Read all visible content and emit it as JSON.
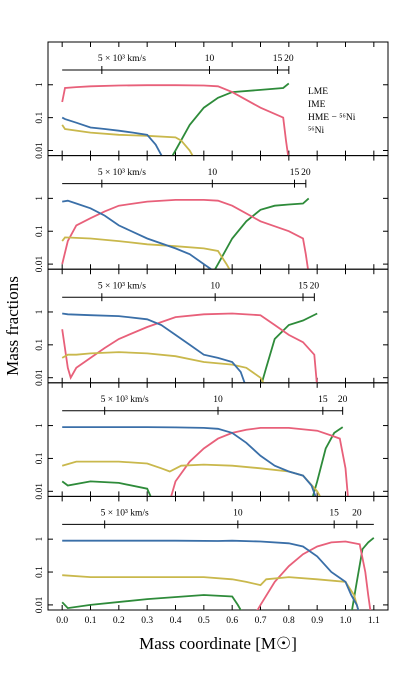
{
  "chart_data": [
    {
      "type": "line",
      "log_y": true,
      "ylim": [
        0.007,
        20
      ],
      "yticks": [
        0.01,
        0.1,
        1
      ],
      "legend": "right",
      "velocity_xlim": [
        0,
        0.8
      ],
      "velocity_ticks": [
        {
          "value": 0.14,
          "label": "5 × 10³ km/s"
        },
        {
          "value": 0.52,
          "label": "10"
        },
        {
          "value": 0.76,
          "label": "15"
        },
        {
          "value": 0.8,
          "label": "20"
        }
      ],
      "series": [
        {
          "name": "LME",
          "color": "#2e8b3a",
          "x": [
            0.38,
            0.4,
            0.45,
            0.5,
            0.55,
            0.6,
            0.7,
            0.78,
            0.8
          ],
          "values": [
            0.005,
            0.01,
            0.06,
            0.2,
            0.4,
            0.6,
            0.7,
            0.8,
            1.1
          ]
        },
        {
          "name": "IME",
          "color": "#e8607a",
          "x": [
            0,
            0.01,
            0.05,
            0.1,
            0.2,
            0.3,
            0.4,
            0.5,
            0.55,
            0.6,
            0.7,
            0.78,
            0.79,
            0.8
          ],
          "values": [
            0.3,
            0.8,
            0.85,
            0.9,
            0.95,
            0.97,
            0.97,
            0.95,
            0.9,
            0.6,
            0.2,
            0.1,
            0.02,
            0.005
          ]
        },
        {
          "name": "HME − ⁵⁶Ni",
          "color": "#c9b84c",
          "x": [
            0,
            0.01,
            0.1,
            0.2,
            0.3,
            0.4,
            0.42,
            0.45,
            0.47
          ],
          "values": [
            0.06,
            0.045,
            0.035,
            0.03,
            0.028,
            0.025,
            0.02,
            0.01,
            0.005
          ]
        },
        {
          "name": "⁵⁶Ni",
          "color": "#3a6fa8",
          "x": [
            0,
            0.01,
            0.05,
            0.1,
            0.15,
            0.2,
            0.25,
            0.3,
            0.33,
            0.36
          ],
          "values": [
            0.1,
            0.09,
            0.07,
            0.05,
            0.045,
            0.04,
            0.035,
            0.03,
            0.015,
            0.005
          ]
        }
      ]
    },
    {
      "type": "line",
      "log_y": true,
      "ylim": [
        0.007,
        20
      ],
      "yticks": [
        0.01,
        0.1,
        1
      ],
      "velocity_xlim": [
        0,
        0.86
      ],
      "velocity_ticks": [
        {
          "value": 0.14,
          "label": "5 × 10³ km/s"
        },
        {
          "value": 0.53,
          "label": "10"
        },
        {
          "value": 0.82,
          "label": "15"
        },
        {
          "value": 0.86,
          "label": "20"
        }
      ],
      "series": [
        {
          "color": "#2e8b3a",
          "x": [
            0.53,
            0.55,
            0.6,
            0.65,
            0.7,
            0.75,
            0.8,
            0.85,
            0.87
          ],
          "values": [
            0.005,
            0.01,
            0.06,
            0.2,
            0.45,
            0.6,
            0.65,
            0.7,
            1.0
          ]
        },
        {
          "color": "#e8607a",
          "x": [
            0,
            0.02,
            0.05,
            0.1,
            0.15,
            0.2,
            0.3,
            0.4,
            0.5,
            0.55,
            0.6,
            0.7,
            0.8,
            0.85,
            0.86,
            0.87
          ],
          "values": [
            0.01,
            0.05,
            0.15,
            0.25,
            0.4,
            0.6,
            0.8,
            0.9,
            0.9,
            0.85,
            0.6,
            0.2,
            0.1,
            0.06,
            0.02,
            0.005
          ]
        },
        {
          "color": "#c9b84c",
          "x": [
            0,
            0.01,
            0.1,
            0.2,
            0.3,
            0.4,
            0.5,
            0.55,
            0.58,
            0.6
          ],
          "values": [
            0.05,
            0.065,
            0.06,
            0.05,
            0.04,
            0.035,
            0.03,
            0.025,
            0.01,
            0.005
          ]
        },
        {
          "color": "#3a6fa8",
          "x": [
            0,
            0.02,
            0.05,
            0.1,
            0.15,
            0.2,
            0.3,
            0.4,
            0.45,
            0.5,
            0.55
          ],
          "values": [
            0.8,
            0.85,
            0.7,
            0.5,
            0.3,
            0.15,
            0.06,
            0.03,
            0.02,
            0.01,
            0.005
          ]
        }
      ]
    },
    {
      "type": "line",
      "log_y": true,
      "ylim": [
        0.007,
        20
      ],
      "yticks": [
        0.01,
        0.1,
        1
      ],
      "ylabel": "Mass fractions",
      "velocity_xlim": [
        0,
        0.89
      ],
      "velocity_ticks": [
        {
          "value": 0.14,
          "label": "5 × 10³ km/s"
        },
        {
          "value": 0.54,
          "label": "10"
        },
        {
          "value": 0.85,
          "label": "15"
        },
        {
          "value": 0.89,
          "label": "20"
        }
      ],
      "series": [
        {
          "color": "#2e8b3a",
          "x": [
            0.7,
            0.72,
            0.75,
            0.8,
            0.85,
            0.9
          ],
          "values": [
            0.005,
            0.02,
            0.15,
            0.4,
            0.55,
            0.9
          ]
        },
        {
          "color": "#e8607a",
          "x": [
            0,
            0.02,
            0.03,
            0.05,
            0.1,
            0.15,
            0.2,
            0.3,
            0.4,
            0.5,
            0.6,
            0.7,
            0.75,
            0.8,
            0.85,
            0.89,
            0.9
          ],
          "values": [
            0.3,
            0.02,
            0.01,
            0.02,
            0.04,
            0.08,
            0.15,
            0.35,
            0.7,
            0.85,
            0.9,
            0.8,
            0.4,
            0.2,
            0.12,
            0.05,
            0.005
          ]
        },
        {
          "color": "#c9b84c",
          "x": [
            0,
            0.02,
            0.05,
            0.1,
            0.2,
            0.3,
            0.4,
            0.5,
            0.6,
            0.65,
            0.7,
            0.72
          ],
          "values": [
            0.04,
            0.05,
            0.05,
            0.055,
            0.06,
            0.055,
            0.045,
            0.03,
            0.025,
            0.02,
            0.01,
            0.005
          ]
        },
        {
          "color": "#3a6fa8",
          "x": [
            0,
            0.02,
            0.1,
            0.2,
            0.3,
            0.35,
            0.4,
            0.45,
            0.5,
            0.55,
            0.6,
            0.63,
            0.65
          ],
          "values": [
            0.9,
            0.85,
            0.8,
            0.75,
            0.6,
            0.4,
            0.2,
            0.1,
            0.05,
            0.04,
            0.03,
            0.015,
            0.005
          ]
        }
      ]
    },
    {
      "type": "line",
      "log_y": true,
      "ylim": [
        0.007,
        20
      ],
      "yticks": [
        0.01,
        0.1,
        1
      ],
      "velocity_xlim": [
        0,
        0.99
      ],
      "velocity_ticks": [
        {
          "value": 0.15,
          "label": "5 × 10³ km/s"
        },
        {
          "value": 0.55,
          "label": "10"
        },
        {
          "value": 0.92,
          "label": "15"
        },
        {
          "value": 0.99,
          "label": "20"
        }
      ],
      "series": [
        {
          "color": "#2e8b3a",
          "x": [
            0,
            0.02,
            0.1,
            0.2,
            0.3,
            0.32,
            null,
            0.88,
            0.9,
            0.93,
            0.96,
            0.99
          ],
          "values": [
            0.02,
            0.015,
            0.02,
            0.018,
            0.012,
            0.005,
            null,
            0.005,
            0.02,
            0.2,
            0.6,
            0.9
          ]
        },
        {
          "color": "#e8607a",
          "x": [
            0.38,
            0.4,
            0.45,
            0.5,
            0.55,
            0.6,
            0.65,
            0.7,
            0.8,
            0.9,
            0.95,
            0.98,
            1.0,
            1.01
          ],
          "values": [
            0.005,
            0.02,
            0.08,
            0.2,
            0.4,
            0.6,
            0.75,
            0.85,
            0.85,
            0.7,
            0.5,
            0.4,
            0.05,
            0.005
          ]
        },
        {
          "color": "#c9b84c",
          "x": [
            0,
            0.05,
            0.2,
            0.3,
            0.35,
            0.38,
            0.42,
            0.5,
            0.6,
            0.7,
            0.8,
            0.85,
            0.9,
            0.92
          ],
          "values": [
            0.06,
            0.08,
            0.08,
            0.07,
            0.05,
            0.04,
            0.06,
            0.065,
            0.06,
            0.05,
            0.04,
            0.03,
            0.01,
            0.005
          ]
        },
        {
          "color": "#3a6fa8",
          "x": [
            0,
            0.1,
            0.2,
            0.3,
            0.4,
            0.5,
            0.55,
            0.6,
            0.65,
            0.7,
            0.75,
            0.8,
            0.85,
            0.88,
            0.9
          ],
          "values": [
            0.9,
            0.9,
            0.9,
            0.9,
            0.88,
            0.85,
            0.8,
            0.6,
            0.3,
            0.12,
            0.06,
            0.04,
            0.03,
            0.015,
            0.005
          ]
        }
      ]
    },
    {
      "type": "line",
      "log_y": true,
      "ylim": [
        0.007,
        20
      ],
      "yticks": [
        0.01,
        0.1,
        1
      ],
      "xlabel": "Mass coordinate [M☉]",
      "xlim": [
        -0.05,
        1.15
      ],
      "xticks": [
        {
          "value": 0,
          "label": "0.0"
        },
        {
          "value": 0.1,
          "label": "0.1"
        },
        {
          "value": 0.2,
          "label": "0.2"
        },
        {
          "value": 0.3,
          "label": "0.3"
        },
        {
          "value": 0.4,
          "label": "0.4"
        },
        {
          "value": 0.5,
          "label": "0.5"
        },
        {
          "value": 0.6,
          "label": "0.6"
        },
        {
          "value": 0.7,
          "label": "0.7"
        },
        {
          "value": 0.8,
          "label": "0.8"
        },
        {
          "value": 0.9,
          "label": "0.9"
        },
        {
          "value": 1,
          "label": "1.0"
        },
        {
          "value": 1.1,
          "label": "1.1"
        }
      ],
      "velocity_xlim": [
        0,
        1.1
      ],
      "velocity_ticks": [
        {
          "value": 0.15,
          "label": "5 × 10³ km/s"
        },
        {
          "value": 0.62,
          "label": "10"
        },
        {
          "value": 0.96,
          "label": "15"
        },
        {
          "value": 1.04,
          "label": "20"
        }
      ],
      "series": [
        {
          "color": "#2e8b3a",
          "x": [
            0,
            0.02,
            0.1,
            0.3,
            0.5,
            0.6,
            0.62,
            0.64,
            null,
            1.02,
            1.04,
            1.06,
            1.08,
            1.1
          ],
          "values": [
            0.012,
            0.008,
            0.01,
            0.015,
            0.02,
            0.018,
            0.01,
            0.005,
            null,
            0.005,
            0.05,
            0.5,
            0.8,
            1.1
          ]
        },
        {
          "color": "#e8607a",
          "x": [
            0.68,
            0.7,
            0.75,
            0.8,
            0.85,
            0.9,
            0.95,
            1.0,
            1.05,
            1.07,
            1.08,
            1.09
          ],
          "values": [
            0.005,
            0.01,
            0.05,
            0.15,
            0.35,
            0.6,
            0.8,
            0.85,
            0.7,
            0.1,
            0.02,
            0.005
          ]
        },
        {
          "color": "#c9b84c",
          "x": [
            0,
            0.1,
            0.3,
            0.5,
            0.6,
            0.65,
            0.7,
            0.72,
            0.8,
            0.9,
            1.0,
            1.03,
            1.05
          ],
          "values": [
            0.08,
            0.07,
            0.07,
            0.07,
            0.06,
            0.05,
            0.04,
            0.06,
            0.07,
            0.06,
            0.05,
            0.02,
            0.005
          ]
        },
        {
          "color": "#3a6fa8",
          "x": [
            0,
            0.2,
            0.4,
            0.55,
            0.6,
            0.7,
            0.8,
            0.85,
            0.9,
            0.95,
            1.0,
            1.02,
            1.04,
            1.05
          ],
          "values": [
            0.9,
            0.9,
            0.9,
            0.88,
            0.9,
            0.85,
            0.75,
            0.6,
            0.3,
            0.1,
            0.05,
            0.02,
            0.01,
            0.005
          ]
        }
      ]
    }
  ]
}
